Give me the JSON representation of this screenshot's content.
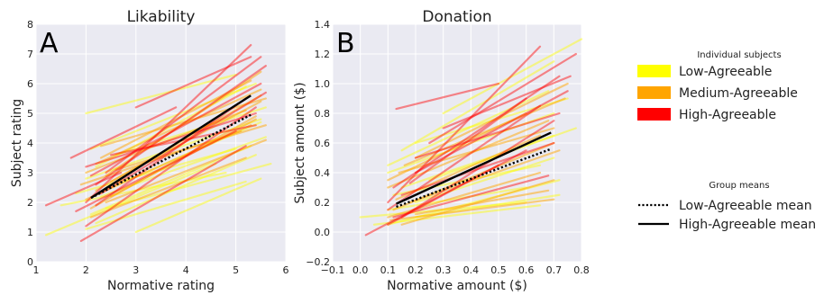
{
  "legend": {
    "individual_title": "Individual subjects",
    "groups": [
      {
        "label": "Low-Agreeable",
        "color": "#ffff00"
      },
      {
        "label": "Medium-Agreeable",
        "color": "#ffa500"
      },
      {
        "label": "High-Agreeable",
        "color": "#ff0000"
      }
    ],
    "means_title": "Group means",
    "means": [
      {
        "label": "Low-Agreeable mean",
        "style": "dotted"
      },
      {
        "label": "High-Agreeable mean",
        "style": "solid"
      }
    ]
  },
  "chart_data": [
    {
      "type": "line",
      "panel_label": "A",
      "title": "Likability",
      "xlabel": "Normative rating",
      "ylabel": "Subject rating",
      "xlim": [
        1,
        6
      ],
      "ylim": [
        0,
        8
      ],
      "xticks": [
        1,
        2,
        3,
        4,
        5,
        6
      ],
      "yticks": [
        0,
        1,
        2,
        3,
        4,
        5,
        6,
        7,
        8
      ],
      "tick_labels_x": [
        "1",
        "2",
        "3",
        "4",
        "5",
        "6"
      ],
      "tick_labels_y": [
        "0",
        "1",
        "2",
        "3",
        "4",
        "5",
        "6",
        "7",
        "8"
      ],
      "background": "#eaeaf2",
      "grid": true,
      "group_means": [
        {
          "name": "Low-Agreeable mean",
          "style": "dotted",
          "x": [
            2.1,
            5.3
          ],
          "y": [
            2.15,
            4.95
          ]
        },
        {
          "name": "High-Agreeable mean",
          "style": "solid",
          "x": [
            2.1,
            5.3
          ],
          "y": [
            2.15,
            5.6
          ]
        }
      ],
      "subject_lines": [
        {
          "group": "Low",
          "x": [
            1.2,
            4.6
          ],
          "y": [
            0.9,
            3.3
          ]
        },
        {
          "group": "Low",
          "x": [
            1.5,
            4.8
          ],
          "y": [
            1.9,
            3.0
          ]
        },
        {
          "group": "Low",
          "x": [
            2.0,
            5.0
          ],
          "y": [
            5.0,
            6.3
          ]
        },
        {
          "group": "Low",
          "x": [
            2.2,
            5.4
          ],
          "y": [
            1.3,
            3.6
          ]
        },
        {
          "group": "Low",
          "x": [
            2.0,
            5.5
          ],
          "y": [
            2.8,
            4.8
          ]
        },
        {
          "group": "Low",
          "x": [
            2.4,
            5.7
          ],
          "y": [
            1.8,
            3.3
          ]
        },
        {
          "group": "Low",
          "x": [
            3.0,
            5.5
          ],
          "y": [
            1.0,
            2.8
          ]
        },
        {
          "group": "Low",
          "x": [
            2.2,
            5.2
          ],
          "y": [
            3.2,
            5.9
          ]
        },
        {
          "group": "Low",
          "x": [
            1.8,
            5.0
          ],
          "y": [
            2.3,
            3.8
          ]
        },
        {
          "group": "Low",
          "x": [
            2.5,
            5.5
          ],
          "y": [
            2.5,
            4.7
          ]
        },
        {
          "group": "Low",
          "x": [
            2.1,
            5.3
          ],
          "y": [
            1.6,
            3.9
          ]
        },
        {
          "group": "Low",
          "x": [
            2.6,
            5.6
          ],
          "y": [
            3.6,
            5.2
          ]
        },
        {
          "group": "Low",
          "x": [
            2.0,
            5.2
          ],
          "y": [
            1.1,
            2.7
          ]
        },
        {
          "group": "Low",
          "x": [
            2.3,
            5.6
          ],
          "y": [
            2.2,
            4.2
          ]
        },
        {
          "group": "Low",
          "x": [
            2.1,
            5.4
          ],
          "y": [
            3.8,
            6.0
          ]
        },
        {
          "group": "Medium",
          "x": [
            2.0,
            5.2
          ],
          "y": [
            3.0,
            5.1
          ]
        },
        {
          "group": "Medium",
          "x": [
            2.2,
            5.5
          ],
          "y": [
            2.4,
            5.6
          ]
        },
        {
          "group": "Medium",
          "x": [
            2.3,
            5.3
          ],
          "y": [
            3.5,
            6.1
          ]
        },
        {
          "group": "Medium",
          "x": [
            2.4,
            5.6
          ],
          "y": [
            2.0,
            4.1
          ]
        },
        {
          "group": "Medium",
          "x": [
            2.1,
            5.4
          ],
          "y": [
            1.8,
            4.9
          ]
        },
        {
          "group": "Medium",
          "x": [
            2.5,
            5.5
          ],
          "y": [
            2.7,
            5.4
          ]
        },
        {
          "group": "Medium",
          "x": [
            1.9,
            5.1
          ],
          "y": [
            2.6,
            4.4
          ]
        },
        {
          "group": "Medium",
          "x": [
            2.2,
            5.5
          ],
          "y": [
            3.3,
            5.8
          ]
        },
        {
          "group": "Medium",
          "x": [
            2.6,
            5.6
          ],
          "y": [
            3.1,
            4.6
          ]
        },
        {
          "group": "Medium",
          "x": [
            2.0,
            5.3
          ],
          "y": [
            2.1,
            4.6
          ]
        },
        {
          "group": "Medium",
          "x": [
            2.4,
            5.5
          ],
          "y": [
            2.9,
            6.4
          ]
        },
        {
          "group": "Medium",
          "x": [
            2.1,
            5.2
          ],
          "y": [
            1.5,
            3.5
          ]
        },
        {
          "group": "Medium",
          "x": [
            2.3,
            5.6
          ],
          "y": [
            3.9,
            5.5
          ]
        },
        {
          "group": "Medium",
          "x": [
            2.5,
            5.4
          ],
          "y": [
            2.2,
            4.8
          ]
        },
        {
          "group": "High",
          "x": [
            1.7,
            3.8
          ],
          "y": [
            3.5,
            5.2
          ]
        },
        {
          "group": "High",
          "x": [
            2.0,
            5.3
          ],
          "y": [
            2.0,
            7.3
          ]
        },
        {
          "group": "High",
          "x": [
            2.0,
            5.4
          ],
          "y": [
            3.2,
            5.0
          ]
        },
        {
          "group": "High",
          "x": [
            1.8,
            5.0
          ],
          "y": [
            1.7,
            4.4
          ]
        },
        {
          "group": "High",
          "x": [
            2.2,
            5.6
          ],
          "y": [
            2.6,
            6.6
          ]
        },
        {
          "group": "High",
          "x": [
            2.0,
            5.4
          ],
          "y": [
            1.2,
            5.2
          ]
        },
        {
          "group": "High",
          "x": [
            1.9,
            5.2
          ],
          "y": [
            0.7,
            3.9
          ]
        },
        {
          "group": "High",
          "x": [
            2.4,
            5.5
          ],
          "y": [
            3.0,
            6.9
          ]
        },
        {
          "group": "High",
          "x": [
            2.3,
            5.6
          ],
          "y": [
            2.3,
            5.7
          ]
        },
        {
          "group": "High",
          "x": [
            3.0,
            5.3
          ],
          "y": [
            5.2,
            6.9
          ]
        },
        {
          "group": "High",
          "x": [
            2.1,
            5.5
          ],
          "y": [
            2.9,
            6.0
          ]
        },
        {
          "group": "High",
          "x": [
            2.2,
            5.2
          ],
          "y": [
            1.9,
            5.5
          ]
        },
        {
          "group": "High",
          "x": [
            2.5,
            5.4
          ],
          "y": [
            3.6,
            4.6
          ]
        },
        {
          "group": "High",
          "x": [
            1.2,
            2.7
          ],
          "y": [
            1.9,
            3.0
          ]
        }
      ]
    },
    {
      "type": "line",
      "panel_label": "B",
      "title": "Donation",
      "xlabel": "Normative amount ($)",
      "ylabel": "Subject amount ($)",
      "xlim": [
        -0.1,
        0.8
      ],
      "ylim": [
        -0.2,
        1.4
      ],
      "xticks": [
        -0.1,
        0,
        0.1,
        0.2,
        0.3,
        0.4,
        0.5,
        0.6,
        0.7,
        0.8
      ],
      "yticks": [
        -0.2,
        0,
        0.2,
        0.4,
        0.6,
        0.8,
        1.0,
        1.2,
        1.4
      ],
      "tick_labels_x": [
        "−0.1",
        "0.0",
        "0.1",
        "0.2",
        "0.3",
        "0.4",
        "0.5",
        "0.6",
        "0.7",
        "0.8"
      ],
      "tick_labels_y": [
        "−0.2",
        "0.0",
        "0.2",
        "0.4",
        "0.6",
        "0.8",
        "1.0",
        "1.2",
        "1.4"
      ],
      "background": "#eaeaf2",
      "grid": true,
      "group_means": [
        {
          "name": "Low-Agreeable mean",
          "style": "dotted",
          "x": [
            0.13,
            0.69
          ],
          "y": [
            0.17,
            0.56
          ]
        },
        {
          "name": "High-Agreeable mean",
          "style": "solid",
          "x": [
            0.13,
            0.69
          ],
          "y": [
            0.19,
            0.67
          ]
        }
      ],
      "subject_lines": [
        {
          "group": "Low",
          "x": [
            0.0,
            0.6
          ],
          "y": [
            0.1,
            0.2
          ]
        },
        {
          "group": "Low",
          "x": [
            0.1,
            0.7
          ],
          "y": [
            0.4,
            0.8
          ]
        },
        {
          "group": "Low",
          "x": [
            0.15,
            0.7
          ],
          "y": [
            0.55,
            1.15
          ]
        },
        {
          "group": "Low",
          "x": [
            0.1,
            0.72
          ],
          "y": [
            0.05,
            0.35
          ]
        },
        {
          "group": "Low",
          "x": [
            0.2,
            0.75
          ],
          "y": [
            0.6,
            0.9
          ]
        },
        {
          "group": "Low",
          "x": [
            0.12,
            0.65
          ],
          "y": [
            0.25,
            0.45
          ]
        },
        {
          "group": "Low",
          "x": [
            0.2,
            0.7
          ],
          "y": [
            0.2,
            0.5
          ]
        },
        {
          "group": "Low",
          "x": [
            0.1,
            0.6
          ],
          "y": [
            0.15,
            0.3
          ]
        },
        {
          "group": "Low",
          "x": [
            0.3,
            0.8
          ],
          "y": [
            0.8,
            1.3
          ]
        },
        {
          "group": "Low",
          "x": [
            0.15,
            0.7
          ],
          "y": [
            0.3,
            0.65
          ]
        },
        {
          "group": "Low",
          "x": [
            0.1,
            0.68
          ],
          "y": [
            0.45,
            0.95
          ]
        },
        {
          "group": "Low",
          "x": [
            0.2,
            0.72
          ],
          "y": [
            0.1,
            0.25
          ]
        },
        {
          "group": "Low",
          "x": [
            0.05,
            0.65
          ],
          "y": [
            0.05,
            0.18
          ]
        },
        {
          "group": "Low",
          "x": [
            0.25,
            0.78
          ],
          "y": [
            0.35,
            0.7
          ]
        },
        {
          "group": "Medium",
          "x": [
            0.12,
            0.7
          ],
          "y": [
            0.15,
            0.6
          ]
        },
        {
          "group": "Medium",
          "x": [
            0.1,
            0.68
          ],
          "y": [
            0.3,
            0.75
          ]
        },
        {
          "group": "Medium",
          "x": [
            0.15,
            0.7
          ],
          "y": [
            0.05,
            0.35
          ]
        },
        {
          "group": "Medium",
          "x": [
            0.2,
            0.75
          ],
          "y": [
            0.5,
            1.0
          ]
        },
        {
          "group": "Medium",
          "x": [
            0.1,
            0.65
          ],
          "y": [
            0.1,
            0.4
          ]
        },
        {
          "group": "Medium",
          "x": [
            0.18,
            0.72
          ],
          "y": [
            0.2,
            0.55
          ]
        },
        {
          "group": "Medium",
          "x": [
            0.1,
            0.6
          ],
          "y": [
            0.35,
            0.8
          ]
        },
        {
          "group": "Medium",
          "x": [
            0.14,
            0.7
          ],
          "y": [
            0.4,
            0.7
          ]
        },
        {
          "group": "Medium",
          "x": [
            0.2,
            0.68
          ],
          "y": [
            0.12,
            0.28
          ]
        },
        {
          "group": "Medium",
          "x": [
            0.13,
            0.65
          ],
          "y": [
            0.22,
            0.65
          ]
        },
        {
          "group": "Medium",
          "x": [
            0.16,
            0.74
          ],
          "y": [
            0.45,
            0.9
          ]
        },
        {
          "group": "Medium",
          "x": [
            0.11,
            0.7
          ],
          "y": [
            0.08,
            0.22
          ]
        },
        {
          "group": "High",
          "x": [
            0.1,
            0.65
          ],
          "y": [
            0.2,
            1.25
          ]
        },
        {
          "group": "High",
          "x": [
            0.13,
            0.5
          ],
          "y": [
            0.83,
            1.0
          ]
        },
        {
          "group": "High",
          "x": [
            0.02,
            0.5
          ],
          "y": [
            -0.02,
            0.45
          ]
        },
        {
          "group": "High",
          "x": [
            0.15,
            0.7
          ],
          "y": [
            0.1,
            0.75
          ]
        },
        {
          "group": "High",
          "x": [
            0.12,
            0.72
          ],
          "y": [
            0.3,
            1.05
          ]
        },
        {
          "group": "High",
          "x": [
            0.2,
            0.75
          ],
          "y": [
            0.4,
            0.95
          ]
        },
        {
          "group": "High",
          "x": [
            0.1,
            0.6
          ],
          "y": [
            0.05,
            0.55
          ]
        },
        {
          "group": "High",
          "x": [
            0.25,
            0.78
          ],
          "y": [
            0.6,
            1.2
          ]
        },
        {
          "group": "High",
          "x": [
            0.15,
            0.7
          ],
          "y": [
            0.25,
            0.6
          ]
        },
        {
          "group": "High",
          "x": [
            0.1,
            0.65
          ],
          "y": [
            0.15,
            0.85
          ]
        },
        {
          "group": "High",
          "x": [
            0.2,
            0.72
          ],
          "y": [
            0.5,
            0.8
          ]
        },
        {
          "group": "High",
          "x": [
            0.3,
            0.76
          ],
          "y": [
            0.7,
            1.05
          ]
        },
        {
          "group": "High",
          "x": [
            0.12,
            0.68
          ],
          "y": [
            0.1,
            0.38
          ]
        },
        {
          "group": "High",
          "x": [
            0.18,
            0.6
          ],
          "y": [
            0.33,
            0.9
          ]
        }
      ]
    }
  ]
}
